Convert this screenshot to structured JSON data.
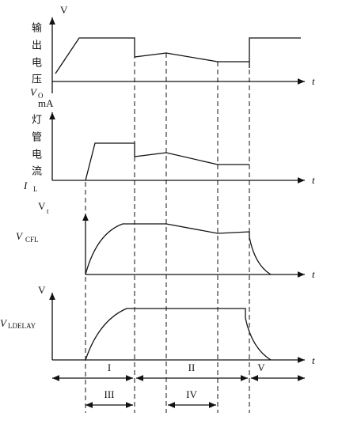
{
  "panels": [
    {
      "y_unit": "V",
      "vertical_label": [
        "输",
        "出",
        "电",
        "压"
      ],
      "signal_main": "V",
      "signal_sub": "O",
      "x_label": "t"
    },
    {
      "y_unit": "mA",
      "vertical_label": [
        "灯",
        "管",
        "电",
        "流"
      ],
      "signal_main": "I",
      "signal_sub": "L",
      "x_label": "t"
    },
    {
      "y_unit_main": "V",
      "y_unit_sub": "t",
      "signal_main": "V",
      "signal_sub": "CFL",
      "x_label": "t"
    },
    {
      "y_unit": "V",
      "signal_main": "V",
      "signal_sub": "LDELAY",
      "x_label": "t"
    }
  ],
  "intervals": {
    "top": [
      "I",
      "II",
      "V"
    ],
    "bottom": [
      "III",
      "IV"
    ]
  }
}
